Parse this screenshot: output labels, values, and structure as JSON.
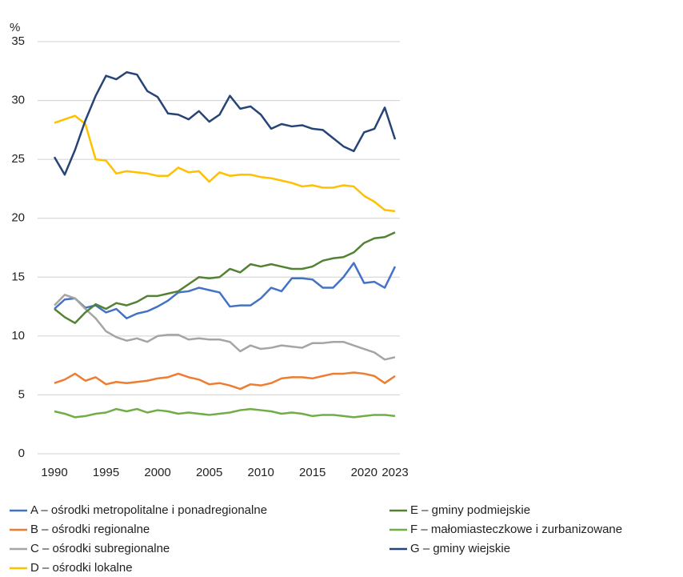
{
  "chart_data": {
    "type": "line",
    "y_label": "%",
    "categories": [
      1990,
      null,
      null,
      null,
      null,
      1995,
      null,
      null,
      null,
      null,
      2000,
      null,
      null,
      null,
      null,
      2005,
      null,
      null,
      null,
      null,
      2010,
      null,
      null,
      null,
      null,
      2015,
      null,
      null,
      null,
      null,
      2020,
      null,
      null,
      2023
    ],
    "ylim": [
      0,
      35
    ],
    "yticks": [
      0,
      5,
      10,
      15,
      20,
      25,
      30,
      35
    ],
    "grid": true,
    "series": [
      {
        "name": "A – ośrodki metropolitalne i ponadregionalne",
        "color": "#4472c4",
        "values": [
          12.3,
          13.1,
          13.2,
          12.4,
          12.6,
          12.0,
          12.3,
          11.5,
          11.9,
          12.1,
          12.5,
          13.0,
          13.7,
          13.8,
          14.1,
          13.9,
          13.7,
          12.5,
          12.6,
          12.6,
          13.2,
          14.1,
          13.8,
          14.9,
          14.9,
          14.8,
          14.1,
          14.1,
          15.0,
          16.2,
          14.5,
          14.6,
          14.1,
          15.9
        ]
      },
      {
        "name": "B – ośrodki regionalne",
        "color": "#ed7d31",
        "values": [
          6.0,
          6.3,
          6.8,
          6.2,
          6.5,
          5.9,
          6.1,
          6.0,
          6.1,
          6.2,
          6.4,
          6.5,
          6.8,
          6.5,
          6.3,
          5.9,
          6.0,
          5.8,
          5.5,
          5.9,
          5.8,
          6.0,
          6.4,
          6.5,
          6.5,
          6.4,
          6.6,
          6.8,
          6.8,
          6.9,
          6.8,
          6.6,
          6.0,
          6.6
        ]
      },
      {
        "name": "C – ośrodki subregionalne",
        "color": "#a5a5a5",
        "values": [
          12.6,
          13.5,
          13.2,
          12.3,
          11.5,
          10.4,
          9.9,
          9.6,
          9.8,
          9.5,
          10.0,
          10.1,
          10.1,
          9.7,
          9.8,
          9.7,
          9.7,
          9.5,
          8.7,
          9.2,
          8.9,
          9.0,
          9.2,
          9.1,
          9.0,
          9.4,
          9.4,
          9.5,
          9.5,
          9.2,
          8.9,
          8.6,
          8.0,
          8.2
        ]
      },
      {
        "name": "D – ośrodki lokalne",
        "color": "#ffc000",
        "values": [
          28.1,
          28.4,
          28.7,
          28.0,
          25.0,
          24.9,
          23.8,
          24.0,
          23.9,
          23.8,
          23.6,
          23.6,
          24.3,
          23.9,
          24.0,
          23.1,
          23.9,
          23.6,
          23.7,
          23.7,
          23.5,
          23.4,
          23.2,
          23.0,
          22.7,
          22.8,
          22.6,
          22.6,
          22.8,
          22.7,
          21.9,
          21.4,
          20.7,
          20.6
        ]
      },
      {
        "name": "E – gminy podmiejskie",
        "color": "#548235",
        "values": [
          12.3,
          11.6,
          11.1,
          12.0,
          12.7,
          12.3,
          12.8,
          12.6,
          12.9,
          13.4,
          13.4,
          13.6,
          13.8,
          14.4,
          15.0,
          14.9,
          15.0,
          15.7,
          15.4,
          16.1,
          15.9,
          16.1,
          15.9,
          15.7,
          15.7,
          15.9,
          16.4,
          16.6,
          16.7,
          17.1,
          17.9,
          18.3,
          18.4,
          18.8
        ]
      },
      {
        "name": "F – małomiasteczkowe i zurbanizowane",
        "color": "#70ad47",
        "values": [
          3.6,
          3.4,
          3.1,
          3.2,
          3.4,
          3.5,
          3.8,
          3.6,
          3.8,
          3.5,
          3.7,
          3.6,
          3.4,
          3.5,
          3.4,
          3.3,
          3.4,
          3.5,
          3.7,
          3.8,
          3.7,
          3.6,
          3.4,
          3.5,
          3.4,
          3.2,
          3.3,
          3.3,
          3.2,
          3.1,
          3.2,
          3.3,
          3.3,
          3.2
        ]
      },
      {
        "name": "G – gminy wiejskie",
        "color": "#264478",
        "values": [
          25.2,
          23.7,
          25.8,
          28.3,
          30.4,
          32.1,
          31.8,
          32.4,
          32.2,
          30.8,
          30.3,
          28.9,
          28.8,
          28.4,
          29.1,
          28.2,
          28.8,
          30.4,
          29.3,
          29.5,
          28.8,
          27.6,
          28.0,
          27.8,
          27.9,
          27.6,
          27.5,
          26.8,
          26.1,
          25.7,
          27.3,
          27.6,
          29.4,
          26.7
        ]
      }
    ]
  }
}
